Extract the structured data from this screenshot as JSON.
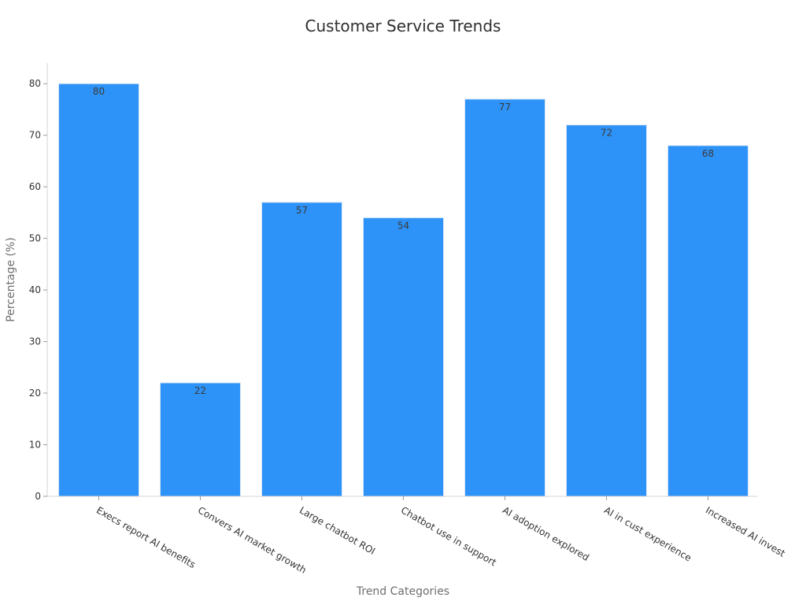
{
  "chart_data": {
    "type": "bar",
    "title": "Customer Service Trends",
    "xlabel": "Trend Categories",
    "ylabel": "Percentage (%)",
    "categories": [
      "Execs report AI benefits",
      "Convers AI market growth",
      "Large chatbot ROI",
      "Chatbot use in support",
      "AI adoption explored",
      "AI in cust experience",
      "Increased AI invest"
    ],
    "values": [
      80,
      22,
      57,
      54,
      77,
      72,
      68
    ],
    "ylim": [
      0,
      84
    ],
    "yticks": [
      0,
      10,
      20,
      30,
      40,
      50,
      60,
      70,
      80
    ],
    "data_labels": true,
    "grid": false,
    "legend": "none",
    "colors": {
      "bar": "#2e93f8",
      "title": "#2f2f2f",
      "axis_label": "#6e6e6e"
    }
  }
}
